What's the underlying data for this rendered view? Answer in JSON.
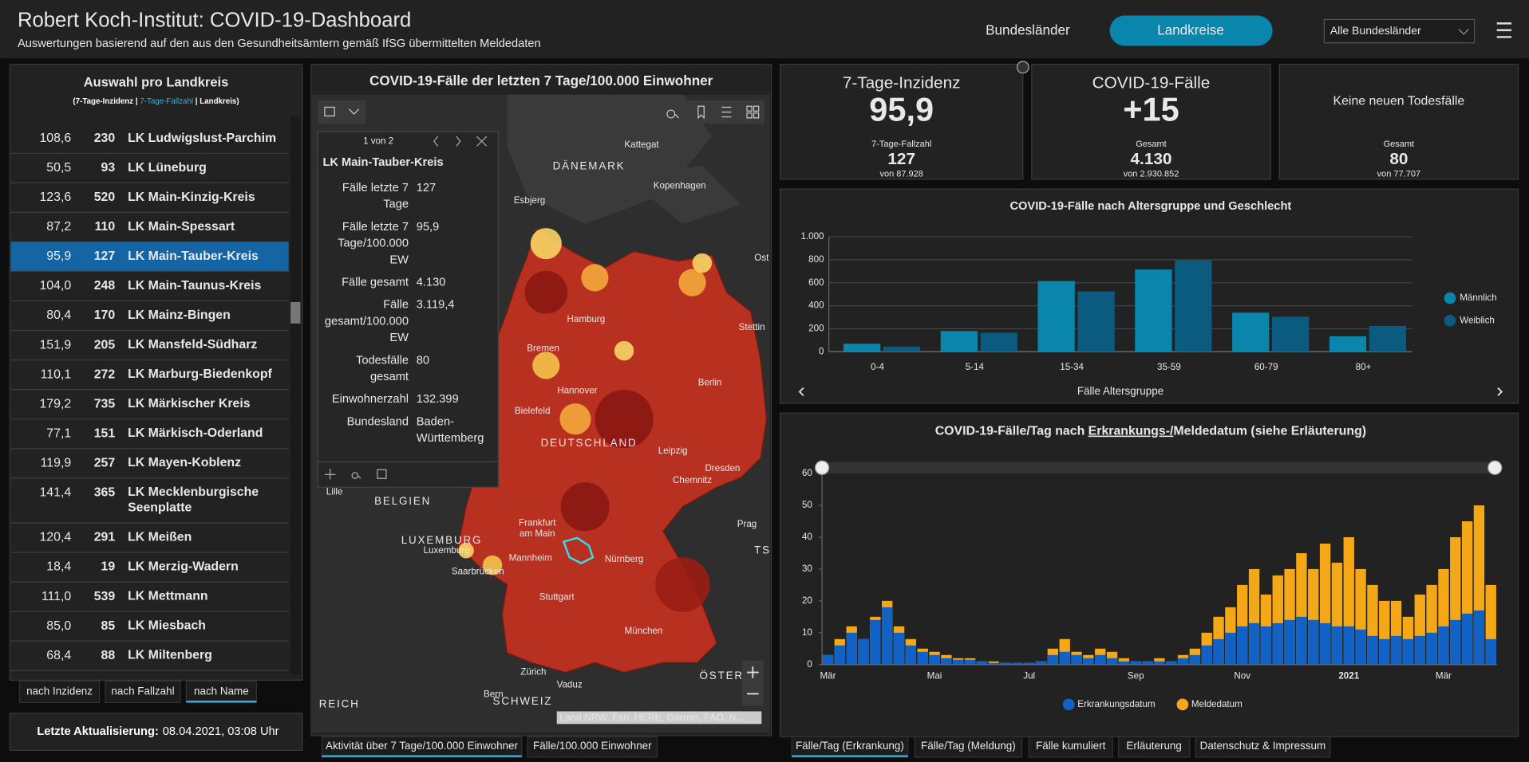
{
  "header": {
    "title": "Robert Koch-Institut: COVID-19-Dashboard",
    "subtitle": "Auswertungen basierend auf den aus den Gesundheitsämtern gemäß IfSG übermittelten Meldedaten",
    "tabs": [
      "Bundesländer",
      "Landkreise"
    ],
    "active_tab": 1,
    "dropdown": "Alle Bundesländer"
  },
  "list": {
    "title": "Auswahl pro Landkreis",
    "subtitle_parts": [
      "(7-Tage-Inzidenz | ",
      "7-Tage-Fallzahl",
      " | Landkreis)"
    ],
    "selected": 4,
    "rows": [
      [
        "108,6",
        230,
        "LK Ludwigslust-Parchim"
      ],
      [
        "50,5",
        93,
        "LK Lüneburg"
      ],
      [
        "123,6",
        520,
        "LK Main-Kinzig-Kreis"
      ],
      [
        "87,2",
        110,
        "LK Main-Spessart"
      ],
      [
        "95,9",
        127,
        "LK Main-Tauber-Kreis"
      ],
      [
        "104,0",
        248,
        "LK Main-Taunus-Kreis"
      ],
      [
        "80,4",
        170,
        "LK Mainz-Bingen"
      ],
      [
        "151,9",
        205,
        "LK Mansfeld-Südharz"
      ],
      [
        "110,1",
        272,
        "LK Marburg-Biedenkopf"
      ],
      [
        "179,2",
        735,
        "LK Märkischer Kreis"
      ],
      [
        "77,1",
        151,
        "LK Märkisch-Oderland"
      ],
      [
        "119,9",
        257,
        "LK Mayen-Koblenz"
      ],
      [
        "141,4",
        365,
        "LK Mecklenburgische Seenplatte"
      ],
      [
        "120,4",
        291,
        "LK Meißen"
      ],
      [
        "18,4",
        19,
        "LK Merzig-Wadern"
      ],
      [
        "111,0",
        539,
        "LK Mettmann"
      ],
      [
        "85,0",
        85,
        "LK Miesbach"
      ],
      [
        "68,4",
        88,
        "LK Miltenberg"
      ]
    ],
    "sort_buttons": [
      "nach Inzidenz",
      "nach Fallzahl",
      "nach Name"
    ],
    "active_sort": 2,
    "last_update_label": "Letzte Aktualisierung:",
    "last_update": "08.04.2021, 03:08 Uhr"
  },
  "map": {
    "title": "COVID-19-Fälle der letzten 7 Tage/100.000 Einwohner",
    "popup": {
      "pager": "1 von 2",
      "name": "LK Main-Tauber-Kreis",
      "fields": [
        {
          "label": "Fälle letzte 7 Tage",
          "value": "127"
        },
        {
          "label": "Fälle letzte 7 Tage/100.000 EW",
          "value": "95,9"
        },
        {
          "label": "Fälle gesamt",
          "value": "4.130"
        },
        {
          "label": "Fälle gesamt/100.000 EW",
          "value": "3.119,4"
        },
        {
          "label": "Todesfälle gesamt",
          "value": "80"
        },
        {
          "label": "Einwohnerzahl",
          "value": "132.399"
        },
        {
          "label": "Bundesland",
          "value": "Baden-Württemberg"
        }
      ]
    },
    "places": [
      "Kattegat",
      "DÄNEMARK",
      "Kopenhagen",
      "Esbjerg",
      "Ost",
      "Hamburg",
      "Stettin",
      "Bremen",
      "Hannover",
      "Berlin",
      "Bielefeld",
      "DEUTSCHLAND",
      "Leipzig",
      "Dresden",
      "Chemnitz",
      "Lille",
      "BELGIEN",
      "Frankfurt am Main",
      "Prag",
      "LUXEMBURG",
      "Luxemburg",
      "Mannheim",
      "Nürnberg",
      "TS",
      "Saarbrücken",
      "Stuttgart",
      "München",
      "Zürich",
      "ÖSTER",
      "Vaduz",
      "Bern",
      "SCHWEIZ",
      "REICH"
    ],
    "attribution": "Land NRW, Esri, HERE, Garmin, FAO, N...",
    "tabs": [
      "Aktivität über 7 Tage/100.000 Einwohner",
      "Fälle/100.000 Einwohner"
    ],
    "active_tab": 0
  },
  "stats": [
    {
      "title": "7-Tage-Inzidenz",
      "value": "95,9",
      "sub_label": "7-Tage-Fallzahl",
      "sub_value": "127",
      "sub_of": "von 87.928"
    },
    {
      "title": "COVID-19-Fälle",
      "value": "+15",
      "sub_label": "Gesamt",
      "sub_value": "4.130",
      "sub_of": "von 2.930.852"
    },
    {
      "title": "Keine neuen Todesfälle",
      "sub_label": "Gesamt",
      "sub_value": "80",
      "sub_of": "von 77.707"
    }
  ],
  "chart_data": [
    {
      "type": "bar",
      "bar_mode": "grouped",
      "title": "COVID-19-Fälle nach Altersgruppe und Geschlecht",
      "x_label": "Fälle Altersgruppe",
      "categories": [
        "0-4",
        "5-14",
        "15-34",
        "35-59",
        "60-79",
        "80+"
      ],
      "series": [
        {
          "name": "Männlich",
          "color": "#0a86ad",
          "values": [
            70,
            180,
            615,
            715,
            340,
            135
          ]
        },
        {
          "name": "Weiblich",
          "color": "#0b5a80",
          "values": [
            45,
            165,
            525,
            795,
            305,
            225
          ]
        }
      ],
      "ylim": [
        0,
        1000
      ],
      "yticks": [
        0,
        200,
        400,
        600,
        800,
        {
          "value": 1000,
          "label": "1.000"
        }
      ],
      "grid": true,
      "legend": "right"
    },
    {
      "type": "bar",
      "bar_mode": "overlap",
      "title_parts": [
        "COVID-19-Fälle/Tag nach ",
        "Erkrankungs-/",
        "Meldedatum (siehe Erläuterung)"
      ],
      "categories": [
        "Mär",
        null,
        null,
        null,
        null,
        null,
        null,
        null,
        null,
        "Mai",
        null,
        null,
        null,
        null,
        null,
        null,
        null,
        "Jul",
        null,
        null,
        null,
        null,
        null,
        null,
        null,
        null,
        "Sep",
        null,
        null,
        null,
        null,
        null,
        null,
        null,
        null,
        "Nov",
        null,
        null,
        null,
        null,
        null,
        null,
        null,
        null,
        "2021",
        null,
        null,
        null,
        null,
        null,
        null,
        null,
        "Mär",
        null,
        null,
        null,
        null
      ],
      "series": [
        {
          "name": "Erkrankungsdatum",
          "color": "#1261c4",
          "values": [
            3,
            6,
            10,
            8,
            14,
            18,
            10,
            6,
            4,
            3,
            2,
            1.5,
            1.5,
            1,
            0.5,
            0.5,
            0.5,
            0.5,
            1,
            3,
            4,
            3,
            2,
            3,
            2,
            1,
            1,
            1,
            1,
            1,
            2,
            3,
            6,
            8,
            10,
            12,
            13,
            12,
            13,
            14,
            15,
            14,
            13,
            12,
            12,
            11,
            9,
            8,
            9,
            8,
            9,
            10,
            12,
            14,
            16,
            17,
            8
          ]
        },
        {
          "name": "Meldedatum",
          "color": "#f5a817",
          "values": [
            3,
            8,
            12,
            8,
            15,
            20,
            12,
            8,
            5,
            4,
            3,
            2,
            2,
            1,
            1,
            0.5,
            0.5,
            0.5,
            1,
            5,
            8,
            4,
            3,
            5,
            4,
            2,
            1,
            1,
            2,
            1,
            3,
            5,
            10,
            15,
            18,
            25,
            30,
            22,
            28,
            30,
            35,
            30,
            38,
            32,
            40,
            30,
            25,
            20,
            20,
            15,
            22,
            25,
            30,
            40,
            45,
            50,
            25
          ]
        }
      ],
      "ylim": [
        0,
        60
      ],
      "yticks": [
        0,
        10,
        20,
        30,
        40,
        50,
        60
      ],
      "grid": false,
      "legend": "bottom"
    }
  ],
  "bottom_tabs": [
    "Fälle/Tag (Erkrankung)",
    "Fälle/Tag (Meldung)",
    "Fälle kumuliert",
    "Erläuterung",
    "Datenschutz & Impressum"
  ],
  "active_bottom_tab": 0
}
